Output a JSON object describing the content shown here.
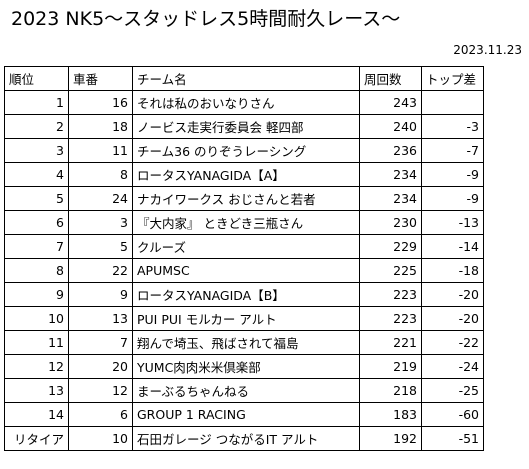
{
  "title": "2023 NK5～スタッドレス5時間耐久レース～",
  "date": "2023.11.23",
  "table": {
    "headers": [
      "順位",
      "車番",
      "チーム名",
      "周回数",
      "トップ差"
    ],
    "rows": [
      {
        "rank": "1",
        "number": "16",
        "team": "それは私のおいなりさん",
        "laps": "243",
        "gap": ""
      },
      {
        "rank": "2",
        "number": "18",
        "team": "ノービス走実行委員会 軽四部",
        "laps": "240",
        "gap": "-3"
      },
      {
        "rank": "3",
        "number": "11",
        "team": "チーム36 のりぞうレーシング",
        "laps": "236",
        "gap": "-7"
      },
      {
        "rank": "4",
        "number": "8",
        "team": "ロータスYANAGIDA【A】",
        "laps": "234",
        "gap": "-9"
      },
      {
        "rank": "5",
        "number": "24",
        "team": "ナカイワークス おじさんと若者",
        "laps": "234",
        "gap": "-9"
      },
      {
        "rank": "6",
        "number": "3",
        "team": "『大内家』 ときどき三瓶さん",
        "laps": "230",
        "gap": "-13"
      },
      {
        "rank": "7",
        "number": "5",
        "team": "クルーズ",
        "laps": "229",
        "gap": "-14"
      },
      {
        "rank": "8",
        "number": "22",
        "team": "APUMSC",
        "laps": "225",
        "gap": "-18"
      },
      {
        "rank": "9",
        "number": "9",
        "team": "ロータスYANAGIDA【B】",
        "laps": "223",
        "gap": "-20"
      },
      {
        "rank": "10",
        "number": "13",
        "team": "PUI PUI モルカー アルト",
        "laps": "223",
        "gap": "-20"
      },
      {
        "rank": "11",
        "number": "7",
        "team": "翔んで埼玉、飛ばされて福島",
        "laps": "221",
        "gap": "-22"
      },
      {
        "rank": "12",
        "number": "20",
        "team": "YUMC肉肉米米倶楽部",
        "laps": "219",
        "gap": "-24"
      },
      {
        "rank": "13",
        "number": "12",
        "team": "まーぶるちゃんねる",
        "laps": "218",
        "gap": "-25"
      },
      {
        "rank": "14",
        "number": "6",
        "team": "GROUP 1 RACING",
        "laps": "183",
        "gap": "-60"
      },
      {
        "rank": "リタイア",
        "number": "10",
        "team": "石田ガレージ つながるIT アルト",
        "laps": "192",
        "gap": "-51"
      }
    ]
  }
}
